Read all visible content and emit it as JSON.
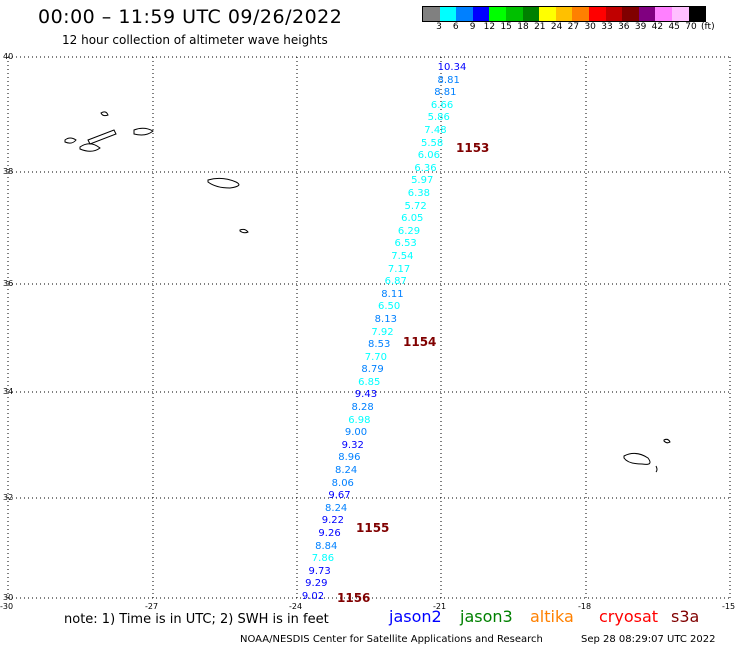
{
  "header": {
    "title": "00:00 – 11:59 UTC 09/26/2022",
    "subtitle": "12 hour collection of altimeter wave heights"
  },
  "colorbar": {
    "colors": [
      "#808080",
      "#00ffff",
      "#0080ff",
      "#0000ff",
      "#00ff00",
      "#00c000",
      "#008000",
      "#ffff00",
      "#ffc000",
      "#ff8000",
      "#ff0000",
      "#c00000",
      "#800000",
      "#800080",
      "#ff80ff",
      "#ffc0ff",
      "#000000"
    ],
    "labels": [
      "3",
      "6",
      "9",
      "12",
      "15",
      "18",
      "21",
      "24",
      "27",
      "30",
      "33",
      "36",
      "39",
      "42",
      "45",
      "70",
      "(ft)"
    ]
  },
  "axes": {
    "lat_labels": [
      "40",
      "38",
      "36",
      "34",
      "32",
      "30"
    ],
    "lon_labels": [
      "-30",
      "-27",
      "-24",
      "-21",
      "-18",
      "-15"
    ]
  },
  "track": {
    "values": [
      {
        "v": "10.34",
        "c": "#0000ff"
      },
      {
        "v": "8.81",
        "c": "#0080ff"
      },
      {
        "v": "8.81",
        "c": "#0080ff"
      },
      {
        "v": "6.66",
        "c": "#00ffff"
      },
      {
        "v": "5.86",
        "c": "#00ffff"
      },
      {
        "v": "7.48",
        "c": "#00ffff"
      },
      {
        "v": "5.58",
        "c": "#00ffff"
      },
      {
        "v": "6.06",
        "c": "#00ffff"
      },
      {
        "v": "6.36",
        "c": "#00ffff"
      },
      {
        "v": "5.97",
        "c": "#00ffff"
      },
      {
        "v": "6.38",
        "c": "#00ffff"
      },
      {
        "v": "5.72",
        "c": "#00ffff"
      },
      {
        "v": "6.05",
        "c": "#00ffff"
      },
      {
        "v": "6.29",
        "c": "#00ffff"
      },
      {
        "v": "6.53",
        "c": "#00ffff"
      },
      {
        "v": "7.54",
        "c": "#00ffff"
      },
      {
        "v": "7.17",
        "c": "#00ffff"
      },
      {
        "v": "6.87",
        "c": "#00ffff"
      },
      {
        "v": "8.11",
        "c": "#0080ff"
      },
      {
        "v": "6.50",
        "c": "#00ffff"
      },
      {
        "v": "8.13",
        "c": "#0080ff"
      },
      {
        "v": "7.92",
        "c": "#00ffff"
      },
      {
        "v": "8.53",
        "c": "#0080ff"
      },
      {
        "v": "7.70",
        "c": "#00ffff"
      },
      {
        "v": "8.79",
        "c": "#0080ff"
      },
      {
        "v": "6.85",
        "c": "#00ffff"
      },
      {
        "v": "9.43",
        "c": "#0000ff"
      },
      {
        "v": "8.28",
        "c": "#0080ff"
      },
      {
        "v": "6.98",
        "c": "#00ffff"
      },
      {
        "v": "9.00",
        "c": "#0080ff"
      },
      {
        "v": "9.32",
        "c": "#0000ff"
      },
      {
        "v": "8.96",
        "c": "#0080ff"
      },
      {
        "v": "8.24",
        "c": "#0080ff"
      },
      {
        "v": "8.06",
        "c": "#0080ff"
      },
      {
        "v": "9.67",
        "c": "#0000ff"
      },
      {
        "v": "8.24",
        "c": "#0080ff"
      },
      {
        "v": "9.22",
        "c": "#0000ff"
      },
      {
        "v": "9.26",
        "c": "#0000ff"
      },
      {
        "v": "8.84",
        "c": "#0080ff"
      },
      {
        "v": "7.86",
        "c": "#00ffff"
      },
      {
        "v": "9.73",
        "c": "#0000ff"
      },
      {
        "v": "9.29",
        "c": "#0000ff"
      },
      {
        "v": "9.02",
        "c": "#0000ff"
      }
    ],
    "pass_labels": [
      "1153",
      "1154",
      "1155",
      "1156"
    ]
  },
  "note": "note:  1) Time is in UTC;  2) SWH is in feet",
  "satellites": [
    {
      "name": "jason2",
      "color": "#0000ff"
    },
    {
      "name": "jason3",
      "color": "#008000"
    },
    {
      "name": "altika",
      "color": "#ff8000"
    },
    {
      "name": "cryosat",
      "color": "#ff0000"
    },
    {
      "name": "s3a",
      "color": "#800000"
    }
  ],
  "footer": {
    "source": "NOAA/NESDIS Center for Satellite Applications and Research",
    "timestamp": "Sep 28 08:29:07 UTC 2022"
  }
}
